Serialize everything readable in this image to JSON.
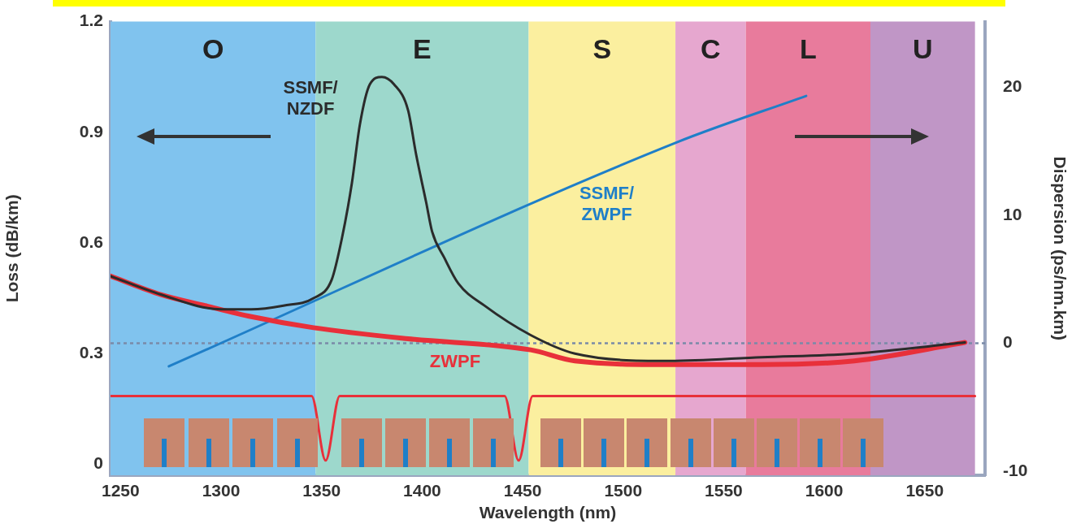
{
  "chart_data": {
    "type": "line",
    "xlabel": "Wavelength (nm)",
    "ylabel": "Loss (dB/km)",
    "y2label": "Dispersion (ps/nm.km)",
    "xlim": [
      1245,
      1680
    ],
    "xticks": [
      1250,
      1300,
      1350,
      1400,
      1450,
      1500,
      1550,
      1600,
      1650
    ],
    "ylim": [
      -0.03,
      1.2
    ],
    "yticks": [
      0,
      0.3,
      0.6,
      0.9,
      1.2
    ],
    "y2lim": [
      -10.3,
      25.1
    ],
    "y2ticks": [
      -10,
      0,
      10,
      20
    ],
    "grid": false,
    "legend": false,
    "marker": "none",
    "line_style": "solid",
    "series": [
      {
        "name": "SSMF/\nNZDF",
        "color": "#2b2b2b",
        "x": [
          1245,
          1270,
          1300,
          1315,
          1331,
          1346,
          1355,
          1360,
          1365,
          1369,
          1374,
          1380,
          1386,
          1393,
          1397,
          1402,
          1405,
          1411,
          1418,
          1431,
          1454,
          1476,
          1523,
          1569,
          1615,
          1670
        ],
        "values": [
          0.51,
          0.46,
          0.42,
          0.42,
          0.43,
          0.45,
          0.5,
          0.61,
          0.76,
          0.92,
          1.03,
          1.05,
          1.03,
          0.96,
          0.84,
          0.71,
          0.63,
          0.56,
          0.49,
          0.43,
          0.35,
          0.3,
          0.28,
          0.29,
          0.3,
          0.33
        ]
      },
      {
        "name": "ZWPF",
        "color": "#e8303a",
        "x": [
          1245,
          1270,
          1292,
          1315,
          1346,
          1393,
          1454,
          1476,
          1523,
          1569,
          1615,
          1670
        ],
        "values": [
          0.51,
          0.46,
          0.43,
          0.4,
          0.37,
          0.34,
          0.31,
          0.28,
          0.27,
          0.27,
          0.28,
          0.33
        ]
      },
      {
        "name": "SSMF/\nZWPF",
        "color": "#1f7fc8",
        "axis": "y2",
        "x": [
          1274,
          1527,
          1591
        ],
        "values": [
          -1.8,
          15.7,
          19.3
        ]
      },
      {
        "color": "#e8303a",
        "x": [
          1245,
          1345,
          1352,
          1359,
          1441,
          1448,
          1455,
          1675
        ],
        "values": [
          0.185,
          0.185,
          0.01,
          0.185,
          0.185,
          0.01,
          0.185,
          0.185
        ]
      }
    ],
    "ref_lines": [
      {
        "axis": "y2",
        "value": 0,
        "color": "#7a8aa8",
        "line_style": "dotted"
      }
    ],
    "bands": [
      {
        "axis": "x",
        "from": 1245,
        "to": 1347,
        "label": "O",
        "color": "#80c3ee"
      },
      {
        "axis": "x",
        "from": 1347,
        "to": 1453,
        "label": "E",
        "color": "#9dd8cc"
      },
      {
        "axis": "x",
        "from": 1453,
        "to": 1526,
        "label": "S",
        "color": "#fbef9f"
      },
      {
        "axis": "x",
        "from": 1526,
        "to": 1561,
        "label": "C",
        "color": "#e6a7cf"
      },
      {
        "axis": "x",
        "from": 1561,
        "to": 1623,
        "label": "L",
        "color": "#e87b9c"
      },
      {
        "axis": "x",
        "from": 1623,
        "to": 1675,
        "label": "U",
        "color": "#c096c6"
      }
    ]
  }
}
